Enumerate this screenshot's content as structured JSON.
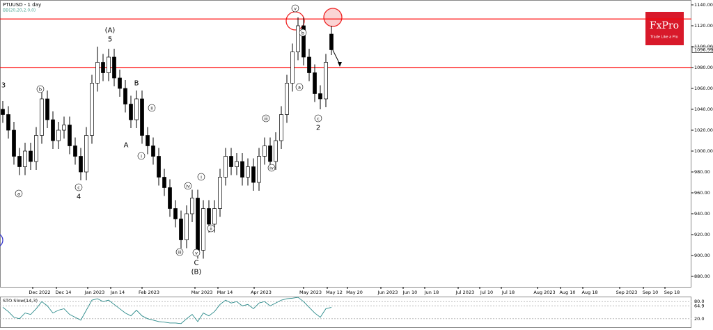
{
  "chart_data": {
    "type": "candlestick",
    "title": "PTUUSD - 1 day",
    "indicator": "BB(20,20,2.0,0)",
    "ylim": [
      870,
      1144.67
    ],
    "yticks": [
      {
        "value": 880,
        "label": "880.00"
      },
      {
        "value": 900,
        "label": "900.00"
      },
      {
        "value": 920,
        "label": "920.00"
      },
      {
        "value": 940,
        "label": "940.00"
      },
      {
        "value": 960,
        "label": "960.00"
      },
      {
        "value": 980,
        "label": "980.00"
      },
      {
        "value": 1000,
        "label": "1000.00"
      },
      {
        "value": 1020,
        "label": "1020.00"
      },
      {
        "value": 1040,
        "label": "1040.00"
      },
      {
        "value": 1060,
        "label": "1060.00"
      },
      {
        "value": 1080,
        "label": "1080.00"
      },
      {
        "value": 1100,
        "label": "1100.00"
      },
      {
        "value": 1120,
        "label": "1120.00"
      },
      {
        "value": 1140,
        "label": "1140.00"
      }
    ],
    "current_price": {
      "value": 1096.99,
      "label": "1096.99"
    },
    "resistance_lines": [
      1126.5,
      1080
    ],
    "line_color": "#ff0000",
    "x_labels": [
      "Dec 2022",
      "Dec 14",
      "Jan 2023",
      "Jan 14",
      "Feb 2023",
      "Mar 2023",
      "Mar 14",
      "Apr 2023",
      "May 2023",
      "May 12",
      "May 20",
      "Jun 2023",
      "Jun 10",
      "Jun 18",
      "Jul 2023",
      "Jul 10",
      "Jul 18",
      "Aug 2023",
      "Aug 10",
      "Aug 18",
      "Sep 2023",
      "Sep 10",
      "Sep 18"
    ],
    "open": [
      1040,
      1035,
      1020,
      995,
      985,
      1000,
      990,
      1015,
      1050,
      1030,
      1010,
      1020,
      1025,
      1005,
      995,
      980,
      1015,
      1065,
      1085,
      1075,
      1090,
      1070,
      1060,
      1045,
      1030,
      1050,
      1015,
      1005,
      995,
      975,
      965,
      945,
      935,
      915,
      940,
      955,
      905,
      945,
      930,
      945,
      975,
      995,
      985,
      990,
      975,
      985,
      970,
      995,
      1005,
      990,
      1010,
      1035,
      1065,
      1095,
      1120,
      1090,
      1075,
      1055,
      1050,
      1112
    ],
    "high": [
      1048,
      1043,
      1028,
      1003,
      1008,
      1008,
      1023,
      1058,
      1058,
      1038,
      1028,
      1033,
      1033,
      1013,
      1003,
      1023,
      1073,
      1100,
      1093,
      1098,
      1098,
      1078,
      1068,
      1053,
      1058,
      1058,
      1023,
      1013,
      1003,
      983,
      973,
      953,
      943,
      948,
      963,
      963,
      953,
      953,
      953,
      983,
      1003,
      1003,
      998,
      998,
      993,
      993,
      1003,
      1013,
      1013,
      1018,
      1043,
      1073,
      1103,
      1128,
      1128,
      1098,
      1083,
      1063,
      1093,
      1120
    ],
    "low": [
      1027,
      1012,
      987,
      977,
      977,
      982,
      982,
      1007,
      1022,
      1002,
      1002,
      1012,
      997,
      987,
      972,
      972,
      1007,
      1057,
      1067,
      1067,
      1062,
      1052,
      1037,
      1022,
      1022,
      1007,
      997,
      987,
      967,
      957,
      937,
      927,
      907,
      907,
      932,
      897,
      897,
      922,
      922,
      937,
      967,
      977,
      977,
      967,
      967,
      962,
      962,
      987,
      982,
      982,
      1002,
      1027,
      1057,
      1087,
      1082,
      1067,
      1047,
      1040,
      1042,
      1092
    ],
    "close": [
      1035,
      1020,
      995,
      985,
      1000,
      990,
      1015,
      1050,
      1030,
      1010,
      1020,
      1025,
      1005,
      995,
      980,
      1015,
      1065,
      1085,
      1075,
      1090,
      1070,
      1060,
      1045,
      1030,
      1050,
      1015,
      1005,
      995,
      975,
      965,
      945,
      935,
      915,
      940,
      955,
      905,
      945,
      930,
      945,
      975,
      995,
      985,
      990,
      975,
      985,
      970,
      995,
      1005,
      990,
      1010,
      1035,
      1065,
      1095,
      1120,
      1090,
      1075,
      1055,
      1050,
      1085,
      1097
    ],
    "annotations": [
      "3",
      "a",
      "b",
      "c",
      "4",
      "(A)",
      "5",
      "B",
      "A",
      "i",
      "ii",
      "iii",
      "iv",
      "v",
      "C",
      "(B)",
      "i",
      "ii",
      "iii",
      "iv",
      "v",
      "a",
      "b",
      "c",
      "2"
    ],
    "stochastic": {
      "title": "STO Slow(14,3)",
      "ylim": [
        0,
        100
      ],
      "yticks": [
        {
          "value": 20,
          "label": "20.0"
        },
        {
          "value": 64.9,
          "label": "64.9"
        },
        {
          "value": 80,
          "label": "80.0"
        }
      ],
      "values": [
        60,
        45,
        25,
        20,
        40,
        35,
        55,
        80,
        65,
        40,
        50,
        55,
        35,
        25,
        15,
        50,
        85,
        90,
        80,
        85,
        70,
        55,
        40,
        30,
        50,
        30,
        20,
        15,
        10,
        8,
        5,
        5,
        3,
        20,
        35,
        10,
        40,
        30,
        45,
        70,
        85,
        75,
        80,
        65,
        70,
        55,
        75,
        80,
        65,
        75,
        85,
        90,
        92,
        95,
        80,
        60,
        40,
        25,
        55,
        60
      ]
    }
  },
  "logo": {
    "name": "FxPro",
    "tagline": "Trade Like a Pro"
  }
}
